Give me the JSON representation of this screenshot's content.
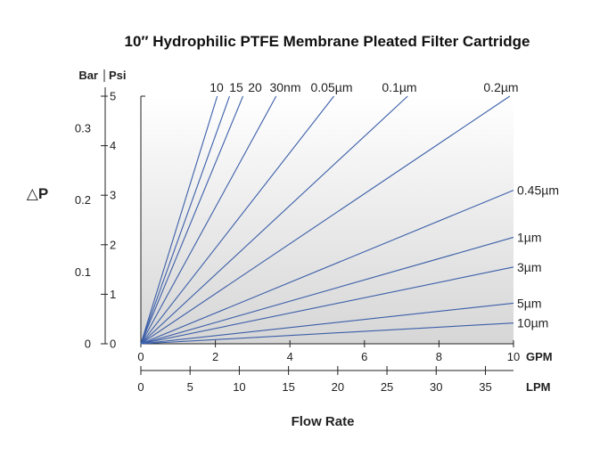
{
  "chart_data": {
    "type": "line",
    "title": "10″ Hydrophilic PTFE Membrane Pleated Filter Cartridge",
    "xlabel": "Flow Rate",
    "ylabel": "△P",
    "x_units": {
      "primary": "GPM",
      "secondary": "LPM"
    },
    "y_units": {
      "primary": "Psi",
      "secondary": "Bar"
    },
    "xlim": [
      0,
      10
    ],
    "ylim": [
      0,
      5
    ],
    "x_ticks": [
      "0",
      "2",
      "4",
      "6",
      "8",
      "10"
    ],
    "x_ticks_lpm": [
      "0",
      "5",
      "10",
      "15",
      "20",
      "25",
      "30",
      "35"
    ],
    "y_ticks_psi": [
      "0",
      "1",
      "2",
      "3",
      "4",
      "5"
    ],
    "y_ticks_bar": [
      "0",
      "0.1",
      "0.2",
      "0.3"
    ],
    "grid": false,
    "series": [
      {
        "name": "10",
        "points": [
          [
            0,
            0
          ],
          [
            2.05,
            5.0
          ]
        ]
      },
      {
        "name": "15",
        "points": [
          [
            0,
            0
          ],
          [
            2.38,
            5.0
          ]
        ]
      },
      {
        "name": "20",
        "points": [
          [
            0,
            0
          ],
          [
            2.74,
            5.0
          ]
        ]
      },
      {
        "name": "30nm",
        "points": [
          [
            0,
            0
          ],
          [
            3.63,
            5.0
          ]
        ]
      },
      {
        "name": "0.05µm",
        "points": [
          [
            0,
            0
          ],
          [
            5.18,
            5.0
          ]
        ]
      },
      {
        "name": "0.1µm",
        "points": [
          [
            0,
            0
          ],
          [
            7.16,
            5.0
          ]
        ]
      },
      {
        "name": "0.2µm",
        "points": [
          [
            0,
            0
          ],
          [
            9.9,
            5.0
          ]
        ]
      },
      {
        "name": "0.45µm",
        "points": [
          [
            0,
            0
          ],
          [
            10,
            3.1
          ]
        ]
      },
      {
        "name": "1µm",
        "points": [
          [
            0,
            0
          ],
          [
            10,
            2.15
          ]
        ]
      },
      {
        "name": "3µm",
        "points": [
          [
            0,
            0
          ],
          [
            10,
            1.55
          ]
        ]
      },
      {
        "name": "5µm",
        "points": [
          [
            0,
            0
          ],
          [
            10,
            0.82
          ]
        ]
      },
      {
        "name": "10µm",
        "points": [
          [
            0,
            0
          ],
          [
            10,
            0.42
          ]
        ]
      }
    ]
  }
}
